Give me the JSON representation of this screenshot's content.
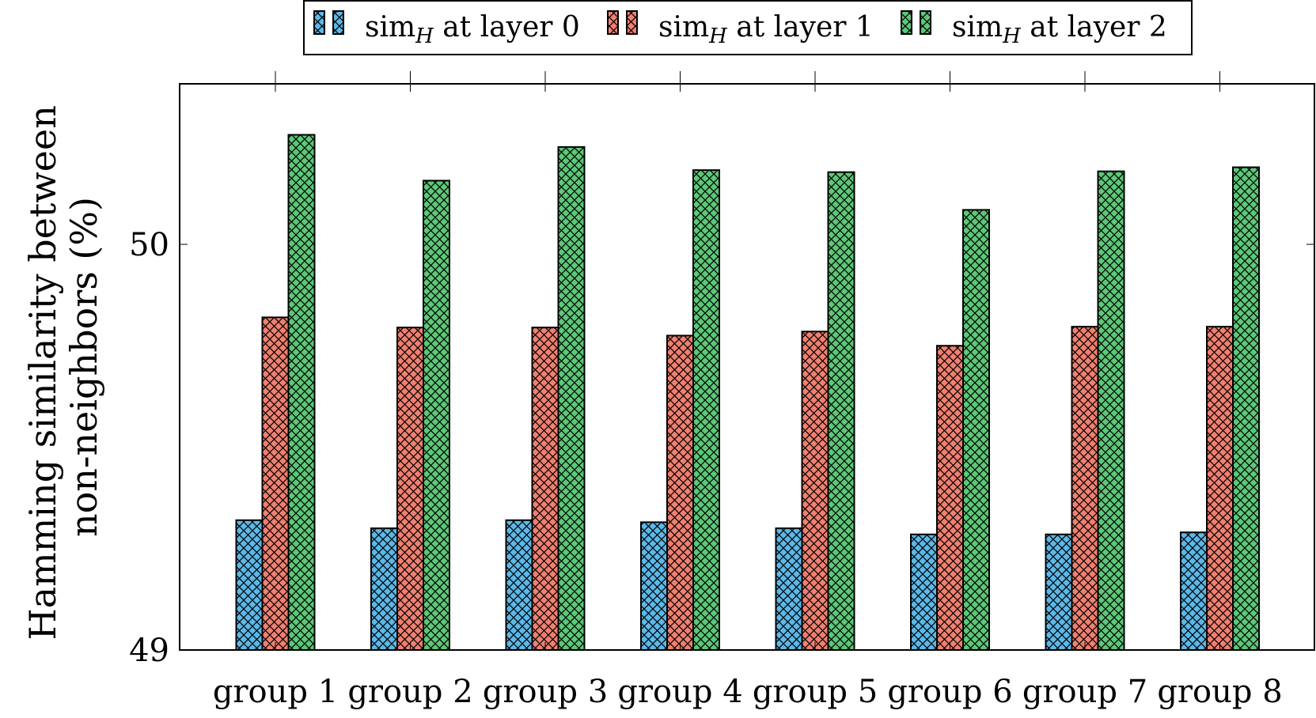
{
  "chart_data": {
    "type": "bar",
    "title": "",
    "xlabel": "",
    "ylabel": "Hamming similarity between non-neighbors (%)",
    "ylabel_lines": [
      "Hamming similarity between",
      "non-neighbors (%)"
    ],
    "ylim": [
      49,
      50.4
    ],
    "yticks": [
      49,
      50
    ],
    "grid": false,
    "legend_position": "top-center",
    "categories": [
      "group 1",
      "group 2",
      "group 3",
      "group 4",
      "group 5",
      "group 6",
      "group 7",
      "group 8"
    ],
    "series": [
      {
        "name": "sim_H at layer 0",
        "legend_base": "sim",
        "legend_sub": "H",
        "legend_rest": " at layer 0",
        "color": "#5bb8e8",
        "values": [
          49.32,
          49.3,
          49.32,
          49.315,
          49.3,
          49.285,
          49.285,
          49.29
        ]
      },
      {
        "name": "sim_H at layer 1",
        "legend_base": "sim",
        "legend_sub": "H",
        "legend_rest": " at layer 1",
        "color": "#f08070",
        "values": [
          49.82,
          49.795,
          49.795,
          49.775,
          49.785,
          49.75,
          49.797,
          49.797
        ]
      },
      {
        "name": "sim_H at layer 2",
        "legend_base": "sim",
        "legend_sub": "H",
        "legend_rest": " at layer 2",
        "color": "#5cc878",
        "values": [
          50.27,
          50.157,
          50.24,
          50.183,
          50.178,
          50.085,
          50.18,
          50.19
        ]
      }
    ]
  }
}
